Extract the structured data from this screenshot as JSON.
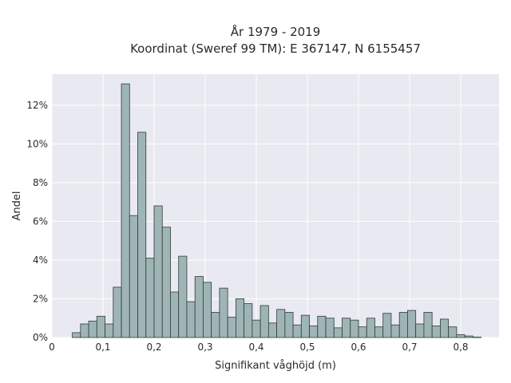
{
  "chart_data": {
    "type": "bar",
    "title": "År 1979 - 2019",
    "subtitle": "Koordinat (Sweref 99 TM): E 367147, N 6155457",
    "xlabel": "Signifikant våghöjd (m)",
    "ylabel": "Andel",
    "xlim": [
      0,
      0.875
    ],
    "ylim": [
      0,
      13.6
    ],
    "grid": true,
    "background": "#e9e9f1",
    "bar_color": "#9fb5b5",
    "bar_edge_color": "#2f3b3b",
    "x_ticks": [
      0,
      0.1,
      0.2,
      0.3,
      0.4,
      0.5,
      0.6,
      0.7,
      0.8
    ],
    "x_tick_labels": [
      "0",
      "0,1",
      "0,2",
      "0,3",
      "0,4",
      "0,5",
      "0,6",
      "0,7",
      "0,8"
    ],
    "y_ticks": [
      0,
      2,
      4,
      6,
      8,
      10,
      12
    ],
    "y_tick_labels": [
      "0%",
      "2%",
      "4%",
      "6%",
      "8%",
      "10%",
      "12%"
    ],
    "bin_width": 0.016,
    "bin_starts": [
      0.04,
      0.056,
      0.072,
      0.088,
      0.104,
      0.12,
      0.136,
      0.152,
      0.168,
      0.184,
      0.2,
      0.216,
      0.232,
      0.248,
      0.264,
      0.28,
      0.296,
      0.312,
      0.328,
      0.344,
      0.36,
      0.376,
      0.392,
      0.408,
      0.424,
      0.44,
      0.456,
      0.472,
      0.488,
      0.504,
      0.52,
      0.536,
      0.552,
      0.568,
      0.584,
      0.6,
      0.616,
      0.632,
      0.648,
      0.664,
      0.68,
      0.696,
      0.712,
      0.728,
      0.744,
      0.76,
      0.776,
      0.792,
      0.808,
      0.824
    ],
    "values": [
      0.25,
      0.7,
      0.85,
      1.1,
      0.7,
      2.6,
      13.1,
      6.3,
      10.6,
      4.1,
      6.8,
      5.7,
      2.35,
      4.2,
      1.85,
      3.15,
      2.85,
      1.3,
      2.55,
      1.05,
      2.0,
      1.75,
      0.9,
      1.65,
      0.75,
      1.45,
      1.3,
      0.65,
      1.15,
      0.6,
      1.1,
      1.0,
      0.5,
      1.0,
      0.9,
      0.55,
      1.0,
      0.55,
      1.25,
      0.65,
      1.3,
      1.4,
      0.7,
      1.3,
      0.6,
      0.95,
      0.55,
      0.15,
      0.08,
      0.02
    ]
  }
}
